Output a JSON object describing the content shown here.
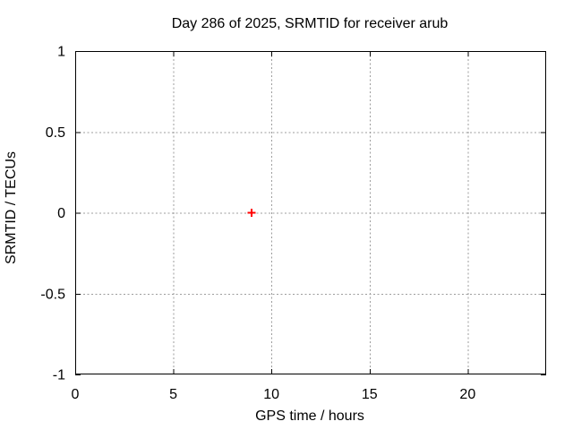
{
  "chart_data": {
    "type": "scatter",
    "title": "Day 286 of 2025, SRMTID for receiver arub",
    "xlabel": "GPS time / hours",
    "ylabel": "SRMTID / TECUs",
    "xlim": [
      0,
      24
    ],
    "ylim": [
      -1,
      1
    ],
    "xticks": [
      0,
      5,
      10,
      15,
      20
    ],
    "yticks": [
      -1,
      -0.5,
      0,
      0.5,
      1
    ],
    "grid": true,
    "legend": "none",
    "series": [
      {
        "name": "SRMTID",
        "marker": "plus",
        "color": "#ff0000",
        "x": [
          9
        ],
        "y": [
          0
        ]
      }
    ]
  },
  "colors": {
    "background": "#ffffff",
    "axis": "#000000",
    "grid": "#9c9c9c",
    "text": "#000000",
    "marker": "#ff0000"
  }
}
